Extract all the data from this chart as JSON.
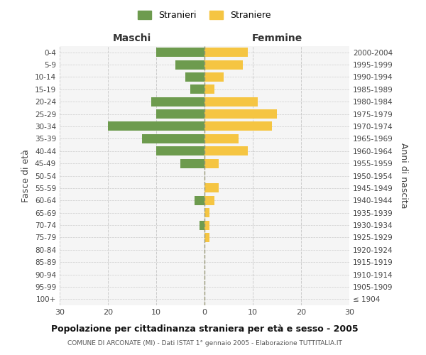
{
  "age_groups": [
    "100+",
    "95-99",
    "90-94",
    "85-89",
    "80-84",
    "75-79",
    "70-74",
    "65-69",
    "60-64",
    "55-59",
    "50-54",
    "45-49",
    "40-44",
    "35-39",
    "30-34",
    "25-29",
    "20-24",
    "15-19",
    "10-14",
    "5-9",
    "0-4"
  ],
  "birth_years": [
    "≤ 1904",
    "1905-1909",
    "1910-1914",
    "1915-1919",
    "1920-1924",
    "1925-1929",
    "1930-1934",
    "1935-1939",
    "1940-1944",
    "1945-1949",
    "1950-1954",
    "1955-1959",
    "1960-1964",
    "1965-1969",
    "1970-1974",
    "1975-1979",
    "1980-1984",
    "1985-1989",
    "1990-1994",
    "1995-1999",
    "2000-2004"
  ],
  "males": [
    0,
    0,
    0,
    0,
    0,
    0,
    1,
    0,
    2,
    0,
    0,
    5,
    10,
    13,
    20,
    10,
    11,
    3,
    4,
    6,
    10
  ],
  "females": [
    0,
    0,
    0,
    0,
    0,
    1,
    1,
    1,
    2,
    3,
    0,
    3,
    9,
    7,
    14,
    15,
    11,
    2,
    4,
    8,
    9
  ],
  "male_color": "#6d9b4e",
  "female_color": "#f5c542",
  "background_color": "#f5f5f5",
  "grid_color": "#cccccc",
  "title": "Popolazione per cittadinanza straniera per età e sesso - 2005",
  "subtitle": "COMUNE DI ARCONATE (MI) - Dati ISTAT 1° gennaio 2005 - Elaborazione TUTTITALIA.IT",
  "ylabel_left": "Fasce di età",
  "ylabel_right": "Anni di nascita",
  "xlabel_left": "Maschi",
  "xlabel_right": "Femmine",
  "legend_stranieri": "Stranieri",
  "legend_straniere": "Straniere",
  "xlim": 30
}
